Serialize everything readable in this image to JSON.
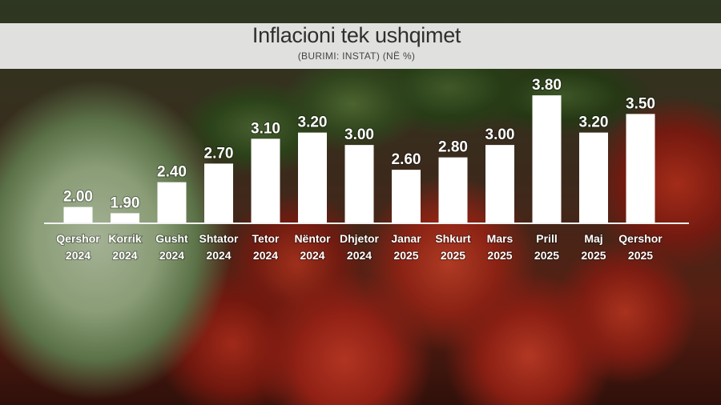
{
  "chart_data": {
    "type": "bar",
    "title": "Inflacioni tek ushqimet",
    "subtitle": "(BURIMI: INSTAT) (NË %)",
    "categories": [
      [
        "Qershor",
        "2024"
      ],
      [
        "Korrik",
        "2024"
      ],
      [
        "Gusht",
        "2024"
      ],
      [
        "Shtator",
        "2024"
      ],
      [
        "Tetor",
        "2024"
      ],
      [
        "Nëntor",
        "2024"
      ],
      [
        "Dhjetor",
        "2024"
      ],
      [
        "Janar",
        "2025"
      ],
      [
        "Shkurt",
        "2025"
      ],
      [
        "Mars",
        "2025"
      ],
      [
        "Prill",
        "2025"
      ],
      [
        "Maj",
        "2025"
      ],
      [
        "Qershor",
        "2025"
      ]
    ],
    "values": [
      2.0,
      1.9,
      2.4,
      2.7,
      3.1,
      3.2,
      3.0,
      2.6,
      2.8,
      3.0,
      3.8,
      3.2,
      3.5
    ],
    "value_labels": [
      "2.00",
      "1.90",
      "2.40",
      "2.70",
      "3.10",
      "3.20",
      "3.00",
      "2.60",
      "2.80",
      "3.00",
      "3.80",
      "3.20",
      "3.50"
    ],
    "xlabel": "",
    "ylabel": "",
    "grid": false,
    "legend": "none",
    "bar_color": "#ffffff"
  }
}
